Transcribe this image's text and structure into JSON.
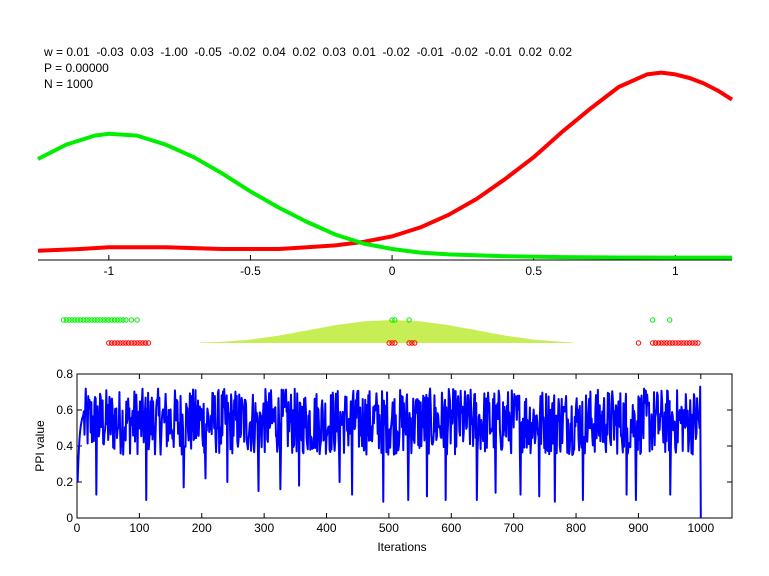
{
  "header": {
    "weights_line": "w = 0.01  -0.03  0.03  -1.00  -0.05  -0.02  0.04  0.02  0.03  0.01  -0.02  -0.01  -0.02  -0.01  0.02  0.02",
    "p_line": "P = 0.00000",
    "n_line": "N = 1000"
  },
  "colors": {
    "red": "#ff0000",
    "green": "#00ee00",
    "blue": "#0000ff",
    "fill": "#c8ee55"
  },
  "chart_data": [
    {
      "type": "line",
      "title": "",
      "xlabel": "",
      "ylabel": "",
      "xlim": [
        -1.25,
        1.2
      ],
      "ylim": [
        0,
        1.1
      ],
      "grid": false,
      "x_ticks": [
        -1,
        -0.5,
        0,
        0.5,
        1
      ],
      "x_tick_labels": [
        "-1",
        "-0.5",
        "0",
        "0.5",
        "1"
      ],
      "series": [
        {
          "color": "red",
          "x": [
            -1.25,
            -1.1,
            -1.0,
            -0.8,
            -0.6,
            -0.5,
            -0.4,
            -0.3,
            -0.2,
            -0.1,
            0.0,
            0.1,
            0.2,
            0.3,
            0.4,
            0.5,
            0.6,
            0.7,
            0.8,
            0.9,
            0.95,
            1.0,
            1.05,
            1.1,
            1.15,
            1.2
          ],
          "y": [
            0.04,
            0.05,
            0.06,
            0.06,
            0.05,
            0.05,
            0.05,
            0.06,
            0.07,
            0.09,
            0.12,
            0.17,
            0.24,
            0.33,
            0.44,
            0.56,
            0.7,
            0.83,
            0.95,
            1.02,
            1.03,
            1.02,
            1.0,
            0.97,
            0.93,
            0.88
          ]
        },
        {
          "color": "green",
          "x": [
            -1.25,
            -1.15,
            -1.05,
            -1.0,
            -0.9,
            -0.8,
            -0.7,
            -0.6,
            -0.5,
            -0.4,
            -0.3,
            -0.2,
            -0.1,
            0.0,
            0.1,
            0.2,
            0.4,
            0.6,
            0.8,
            1.0,
            1.2
          ],
          "y": [
            0.55,
            0.63,
            0.68,
            0.69,
            0.68,
            0.63,
            0.56,
            0.47,
            0.37,
            0.28,
            0.2,
            0.13,
            0.08,
            0.05,
            0.03,
            0.02,
            0.01,
            0.005,
            0.003,
            0.002,
            0.002
          ]
        }
      ]
    },
    {
      "type": "scatter",
      "title": "",
      "xlim": [
        -1.25,
        1.2
      ],
      "axes_visible": false,
      "series": [
        {
          "color": "green",
          "x": [
            -1.16,
            -1.15,
            -1.14,
            -1.13,
            -1.12,
            -1.11,
            -1.1,
            -1.09,
            -1.08,
            -1.07,
            -1.06,
            -1.05,
            -1.04,
            -1.03,
            -1.02,
            -1.01,
            -1.0,
            -0.99,
            -0.98,
            -0.97,
            -0.96,
            -0.95,
            -0.94,
            -0.92,
            -0.9,
            0.0,
            0.01,
            0.06,
            0.92,
            0.98
          ]
        },
        {
          "color": "red",
          "x": [
            -1.0,
            -0.99,
            -0.98,
            -0.97,
            -0.96,
            -0.95,
            -0.94,
            -0.93,
            -0.92,
            -0.91,
            -0.9,
            -0.89,
            -0.88,
            -0.87,
            -0.86,
            -0.01,
            0.0,
            0.01,
            0.06,
            0.07,
            0.08,
            0.87,
            0.92,
            0.93,
            0.94,
            0.95,
            0.96,
            0.97,
            0.98,
            0.99,
            1.0,
            1.01,
            1.02,
            1.03,
            1.04,
            1.05,
            1.06,
            1.07,
            1.08
          ]
        }
      ],
      "area": {
        "color": "fill",
        "x": [
          -0.68,
          -0.6,
          -0.5,
          -0.4,
          -0.3,
          -0.2,
          -0.1,
          0.0,
          0.1,
          0.2,
          0.3,
          0.4,
          0.5,
          0.6,
          0.64
        ],
        "y": [
          0.02,
          0.05,
          0.15,
          0.32,
          0.55,
          0.78,
          0.94,
          1.0,
          0.94,
          0.78,
          0.55,
          0.32,
          0.15,
          0.05,
          0.02
        ]
      }
    },
    {
      "type": "line",
      "title": "",
      "xlabel": "Iterations",
      "ylabel": "PPI value",
      "xlim": [
        0,
        1050
      ],
      "ylim": [
        0,
        0.8
      ],
      "grid": false,
      "x_ticks": [
        0,
        100,
        200,
        300,
        400,
        500,
        600,
        700,
        800,
        900,
        1000
      ],
      "y_ticks": [
        0,
        0.2,
        0.4,
        0.6,
        0.8
      ],
      "y_tick_labels": [
        "0",
        "0.2",
        "0.4",
        "0.6",
        "0.8"
      ],
      "series": [
        {
          "color": "blue",
          "iterations": 1000,
          "start_values": [
            0.2,
            0.3,
            0.38,
            0.44,
            0.48,
            0.51,
            0.53,
            0.55,
            0.56,
            0.57
          ],
          "typical_range": [
            0.35,
            0.72
          ],
          "min_spike_values": [
            0.13,
            0.1,
            0.17,
            0.22,
            0.2,
            0.15,
            0.16,
            0.18,
            0.2,
            0.13,
            0.09,
            0.1,
            0.12,
            0.1,
            0.1,
            0.14,
            0.13,
            0.12,
            0.09,
            0.1,
            0.13,
            0.1,
            0.13,
            0.0
          ],
          "min_spike_iterations": [
            30,
            110,
            170,
            205,
            240,
            290,
            325,
            355,
            420,
            440,
            490,
            530,
            560,
            590,
            640,
            670,
            710,
            740,
            765,
            810,
            880,
            895,
            950,
            999
          ],
          "final_value": 0.73
        }
      ]
    }
  ]
}
